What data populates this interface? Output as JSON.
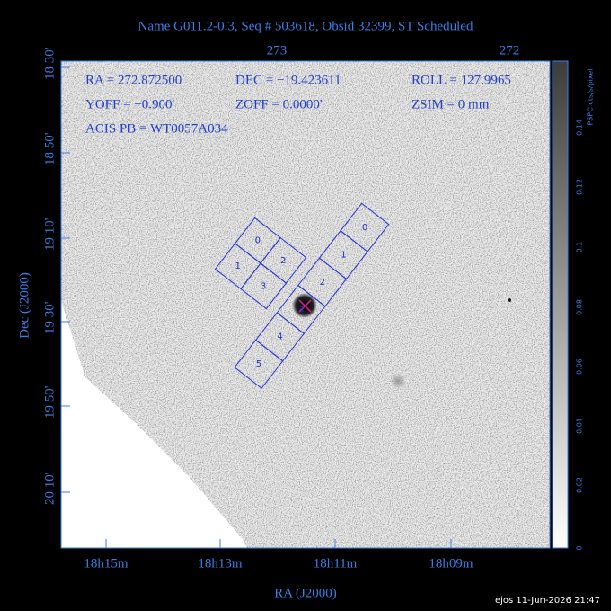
{
  "title": "Name G011.2-0.3, Seq # 503618, Obsid 32399, ST Scheduled",
  "info": [
    [
      "RA = 272.872500",
      "DEC = −19.423611",
      "ROLL = 127.9965"
    ],
    [
      "YOFF =  −0.900'",
      "ZOFF =  0.0000'",
      "ZSIM = 0 mm"
    ],
    [
      "ACIS PB = WT0057A034"
    ]
  ],
  "top_axis": [
    "273",
    "272"
  ],
  "bottom_axis": [
    "18h15m",
    "18h13m",
    "18h11m",
    "18h09m"
  ],
  "left_axis": [
    "−18 30'",
    "−18 50'",
    "−19 10'",
    "−19 30'",
    "−19 50'",
    "−20 10'"
  ],
  "x_title": "RA (J2000)",
  "y_title": "Dec (J2000)",
  "colorbar": {
    "label": "PSPC cts/s/pixel",
    "ticks": [
      "0",
      "0.02",
      "0.04",
      "0.06",
      "0.08",
      "0.1",
      "0.12",
      "0.14"
    ]
  },
  "i_array": [
    "0",
    "1",
    "2",
    "3"
  ],
  "s_array": [
    "0",
    "1",
    "2",
    "3",
    "4",
    "5"
  ],
  "footer": "ejos 11-Jun-2026 21:47"
}
